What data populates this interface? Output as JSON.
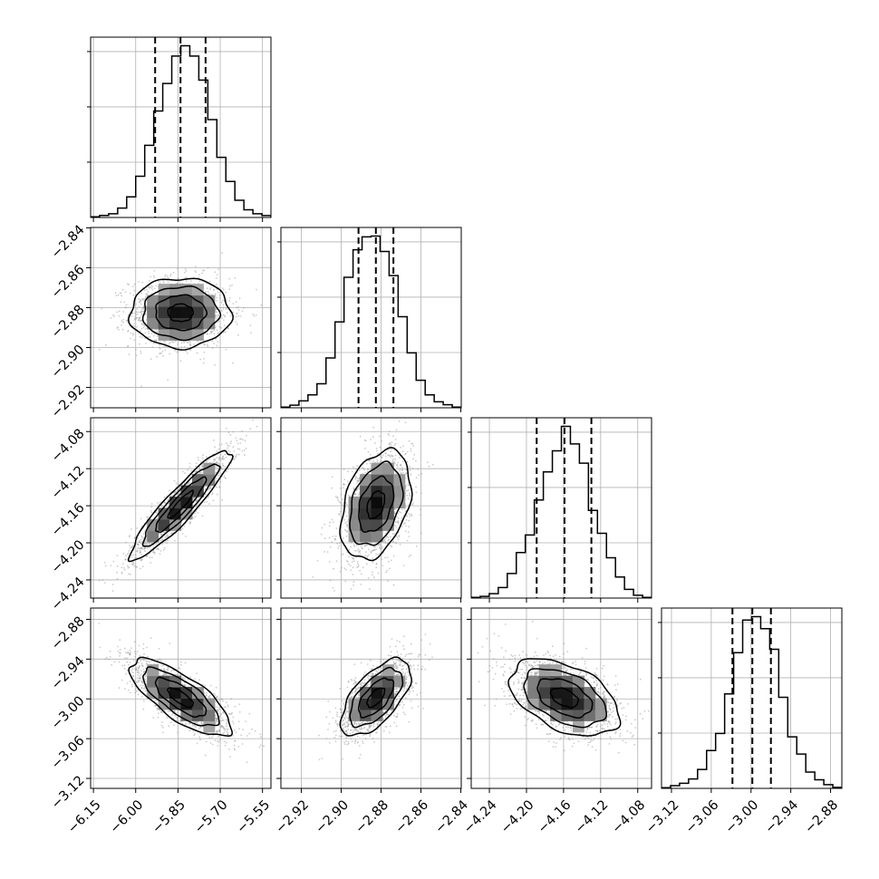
{
  "chart_data": {
    "type": "corner",
    "parameters": 4,
    "grid": true,
    "quantile_lines": "dashed",
    "axes": [
      {
        "ticks": [
          -6.15,
          -6.0,
          -5.85,
          -5.7,
          -5.55
        ],
        "tick_labels": [
          "−6.15",
          "−6.00",
          "−5.85",
          "−5.70",
          "−5.55"
        ],
        "range": [
          -6.16,
          -5.52
        ],
        "quantiles": [
          -5.931,
          -5.841,
          -5.752
        ]
      },
      {
        "ticks": [
          -2.92,
          -2.9,
          -2.88,
          -2.86,
          -2.84
        ],
        "tick_labels": [
          "−2.92",
          "−2.90",
          "−2.88",
          "−2.86",
          "−2.84"
        ],
        "range": [
          -2.9302,
          -2.8398
        ],
        "quantiles": [
          -2.8913,
          -2.8826,
          -2.8738
        ]
      },
      {
        "ticks": [
          -4.24,
          -4.2,
          -4.16,
          -4.12,
          -4.08
        ],
        "tick_labels": [
          "−4.24",
          "−4.20",
          "−4.16",
          "−4.12",
          "−4.08"
        ],
        "range": [
          -4.2596,
          -4.0651
        ],
        "quantiles": [
          -4.189,
          -4.159,
          -4.13
        ]
      },
      {
        "ticks": [
          -3.12,
          -3.06,
          -3.0,
          -2.94,
          -2.88
        ],
        "tick_labels": [
          "−3.12",
          "−3.06",
          "−3.00",
          "−2.94",
          "−2.88"
        ],
        "range": [
          -3.135,
          -2.863
        ],
        "quantiles": [
          -3.028,
          -2.998,
          -2.97
        ]
      }
    ],
    "histograms": [
      [
        0.004,
        0.012,
        0.022,
        0.055,
        0.12,
        0.24,
        0.42,
        0.62,
        0.78,
        0.94,
        1.0,
        0.94,
        0.8,
        0.57,
        0.35,
        0.21,
        0.1,
        0.045,
        0.022,
        0.011
      ],
      [
        0.004,
        0.015,
        0.04,
        0.075,
        0.14,
        0.29,
        0.5,
        0.76,
        0.92,
        0.995,
        1.0,
        0.91,
        0.77,
        0.53,
        0.32,
        0.16,
        0.075,
        0.035,
        0.018,
        0.004
      ],
      [
        0.004,
        0.01,
        0.025,
        0.06,
        0.14,
        0.26,
        0.36,
        0.56,
        0.72,
        0.84,
        0.98,
        0.88,
        0.77,
        0.5,
        0.37,
        0.23,
        0.12,
        0.05,
        0.016,
        0.004
      ],
      [
        0.004,
        0.016,
        0.03,
        0.055,
        0.11,
        0.22,
        0.32,
        0.55,
        0.79,
        0.98,
        1.0,
        0.93,
        0.81,
        0.53,
        0.3,
        0.2,
        0.095,
        0.05,
        0.022,
        0.006
      ]
    ],
    "correlations": {
      "1-0": 0.0,
      "2-0": 0.92,
      "2-1": 0.35,
      "3-0": -0.75,
      "3-1": 0.62,
      "3-2": -0.45
    },
    "title": "",
    "xlabel": "",
    "ylabel": ""
  }
}
